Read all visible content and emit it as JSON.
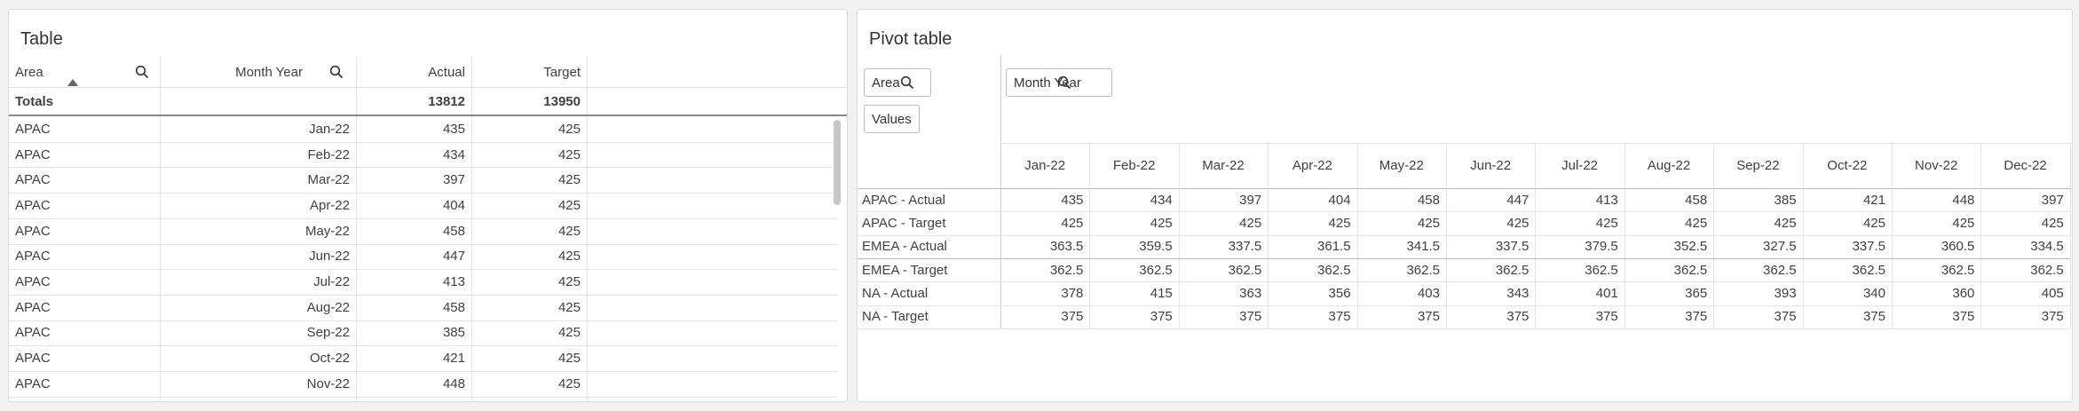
{
  "table": {
    "title": "Table",
    "columns": [
      "Area",
      "Month Year",
      "Actual",
      "Target"
    ],
    "totals": {
      "label": "Totals",
      "actual": 13812,
      "target": 13950
    },
    "rows": [
      [
        "APAC",
        "Jan-22",
        435,
        425
      ],
      [
        "APAC",
        "Feb-22",
        434,
        425
      ],
      [
        "APAC",
        "Mar-22",
        397,
        425
      ],
      [
        "APAC",
        "Apr-22",
        404,
        425
      ],
      [
        "APAC",
        "May-22",
        458,
        425
      ],
      [
        "APAC",
        "Jun-22",
        447,
        425
      ],
      [
        "APAC",
        "Jul-22",
        413,
        425
      ],
      [
        "APAC",
        "Aug-22",
        458,
        425
      ],
      [
        "APAC",
        "Sep-22",
        385,
        425
      ],
      [
        "APAC",
        "Oct-22",
        421,
        425
      ],
      [
        "APAC",
        "Nov-22",
        448,
        425
      ]
    ]
  },
  "pivot": {
    "title": "Pivot table",
    "row_fields": [
      "Area",
      "Values"
    ],
    "column_field": "Month Year",
    "months": [
      "Jan-22",
      "Feb-22",
      "Mar-22",
      "Apr-22",
      "May-22",
      "Jun-22",
      "Jul-22",
      "Aug-22",
      "Sep-22",
      "Oct-22",
      "Nov-22",
      "Dec-22"
    ],
    "rows": [
      {
        "label": "APAC - Actual",
        "values": [
          435,
          434,
          397,
          404,
          458,
          447,
          413,
          458,
          385,
          421,
          448,
          397
        ]
      },
      {
        "label": "APAC - Target",
        "values": [
          425,
          425,
          425,
          425,
          425,
          425,
          425,
          425,
          425,
          425,
          425,
          425
        ]
      },
      {
        "label": "EMEA - Actual",
        "values": [
          363.5,
          359.5,
          337.5,
          361.5,
          341.5,
          337.5,
          379.5,
          352.5,
          327.5,
          337.5,
          360.5,
          334.5
        ]
      },
      {
        "label": "EMEA - Target",
        "values": [
          362.5,
          362.5,
          362.5,
          362.5,
          362.5,
          362.5,
          362.5,
          362.5,
          362.5,
          362.5,
          362.5,
          362.5
        ]
      },
      {
        "label": "NA - Actual",
        "values": [
          378,
          415,
          363,
          356,
          403,
          343,
          401,
          365,
          393,
          340,
          360,
          405
        ]
      },
      {
        "label": "NA - Target",
        "values": [
          375,
          375,
          375,
          375,
          375,
          375,
          375,
          375,
          375,
          375,
          375,
          375
        ]
      }
    ]
  }
}
